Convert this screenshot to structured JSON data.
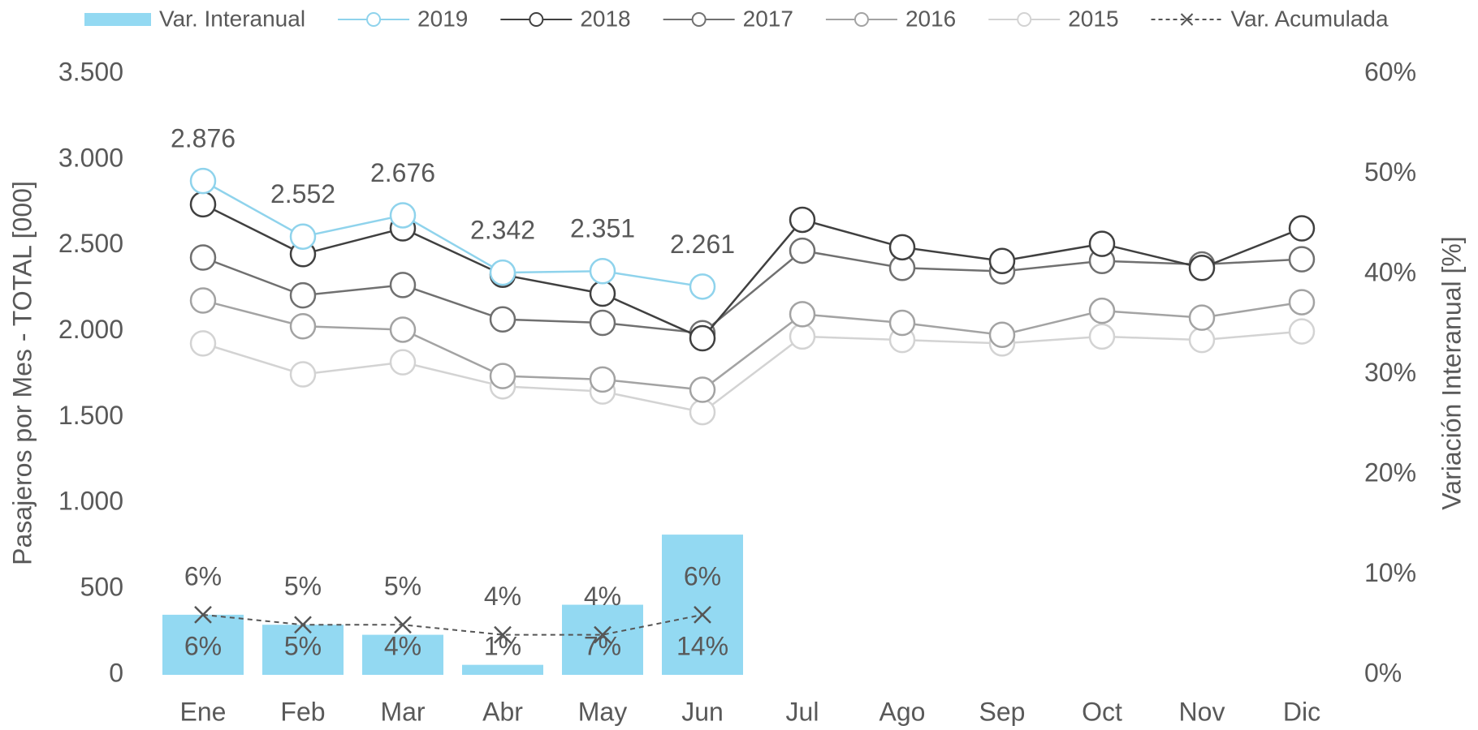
{
  "chart_data": {
    "type": "combo",
    "categories": [
      "Ene",
      "Feb",
      "Mar",
      "Abr",
      "May",
      "Jun",
      "Jul",
      "Ago",
      "Sep",
      "Oct",
      "Nov",
      "Dic"
    ],
    "ylabel": "Pasajeros por Mes - TOTAL [000]",
    "y2label": "Variación Interanual [%]",
    "ylim": [
      0,
      3500
    ],
    "yticks": [
      {
        "value": 0,
        "label": "0"
      },
      {
        "value": 500,
        "label": "500"
      },
      {
        "value": 1000,
        "label": "1.000"
      },
      {
        "value": 1500,
        "label": "1.500"
      },
      {
        "value": 2000,
        "label": "2.000"
      },
      {
        "value": 2500,
        "label": "2.500"
      },
      {
        "value": 3000,
        "label": "3.000"
      },
      {
        "value": 3500,
        "label": "3.500"
      }
    ],
    "y2lim": [
      0,
      60
    ],
    "y2ticks": [
      {
        "value": 0,
        "label": "0%"
      },
      {
        "value": 10,
        "label": "10%"
      },
      {
        "value": 20,
        "label": "20%"
      },
      {
        "value": 30,
        "label": "30%"
      },
      {
        "value": 40,
        "label": "40%"
      },
      {
        "value": 50,
        "label": "50%"
      },
      {
        "value": 60,
        "label": "60%"
      }
    ],
    "series": [
      {
        "name": "Var. Interanual",
        "type": "bar",
        "axis": "y2",
        "color": "#93d9f2",
        "values": [
          6,
          5,
          4,
          1,
          7,
          14,
          null,
          null,
          null,
          null,
          null,
          null
        ],
        "value_labels": [
          "6%",
          "5%",
          "4%",
          "1%",
          "7%",
          "14%",
          null,
          null,
          null,
          null,
          null,
          null
        ]
      },
      {
        "name": "2019",
        "type": "line",
        "color": "#8fd3ec",
        "values": [
          2876,
          2552,
          2676,
          2342,
          2351,
          2261,
          null,
          null,
          null,
          null,
          null,
          null
        ],
        "value_labels": [
          "2.876",
          "2.552",
          "2.676",
          "2.342",
          "2.351",
          "2.261",
          null,
          null,
          null,
          null,
          null,
          null
        ]
      },
      {
        "name": "2018",
        "type": "line",
        "color": "#404040",
        "values": [
          2740,
          2450,
          2600,
          2330,
          2220,
          1960,
          2650,
          2490,
          2410,
          2510,
          2370,
          2600
        ]
      },
      {
        "name": "2017",
        "type": "line",
        "color": "#707070",
        "values": [
          2430,
          2210,
          2270,
          2070,
          2050,
          1990,
          2470,
          2370,
          2350,
          2410,
          2390,
          2420
        ]
      },
      {
        "name": "2016",
        "type": "line",
        "color": "#a3a3a3",
        "values": [
          2180,
          2030,
          2010,
          1740,
          1720,
          1660,
          2100,
          2050,
          1980,
          2120,
          2080,
          2170
        ]
      },
      {
        "name": "2015",
        "type": "line",
        "color": "#d3d3d3",
        "values": [
          1930,
          1750,
          1820,
          1680,
          1650,
          1530,
          1970,
          1950,
          1930,
          1970,
          1950,
          2000
        ]
      },
      {
        "name": "Var. Acumulada",
        "type": "xline",
        "axis": "y2",
        "color": "#555555",
        "values": [
          6,
          5,
          5,
          4,
          4,
          6,
          null,
          null,
          null,
          null,
          null,
          null
        ],
        "value_labels": [
          "6%",
          "5%",
          "5%",
          "4%",
          "4%",
          "6%",
          null,
          null,
          null,
          null,
          null,
          null
        ]
      }
    ]
  }
}
